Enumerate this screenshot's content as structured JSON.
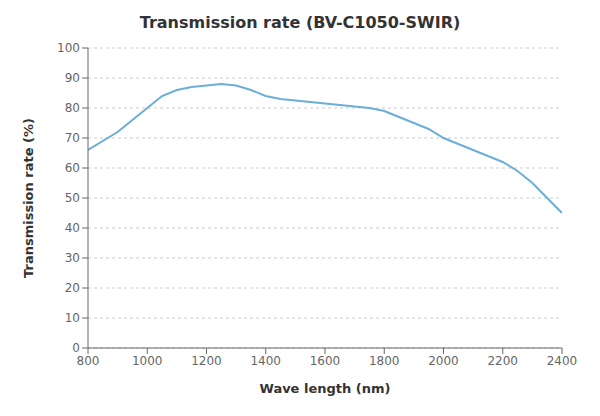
{
  "chart_data": {
    "type": "line",
    "title": "Transmission rate (BV-C1050-SWIR)",
    "xlabel": "Wave length (nm)",
    "ylabel": "Transmission rate (%)",
    "x": [
      800,
      900,
      1000,
      1050,
      1100,
      1150,
      1200,
      1250,
      1300,
      1350,
      1400,
      1450,
      1500,
      1550,
      1600,
      1650,
      1700,
      1750,
      1800,
      1850,
      1900,
      1950,
      2000,
      2050,
      2100,
      2150,
      2200,
      2250,
      2300,
      2350,
      2400
    ],
    "values": [
      66,
      72,
      80,
      84,
      86,
      87,
      87.5,
      88,
      87.5,
      86,
      84,
      83,
      82.5,
      82,
      81.5,
      81,
      80.5,
      80,
      79,
      77,
      75,
      73,
      70,
      68,
      66,
      64,
      62,
      59,
      55,
      50,
      45
    ],
    "color": "#6baed6",
    "xlim": [
      800,
      2400
    ],
    "ylim": [
      0,
      100
    ],
    "xticks": [
      800,
      1000,
      1200,
      1400,
      1600,
      1800,
      2000,
      2200,
      2400
    ],
    "yticks": [
      0,
      10,
      20,
      30,
      40,
      50,
      60,
      70,
      80,
      90,
      100
    ],
    "grid": "y"
  }
}
